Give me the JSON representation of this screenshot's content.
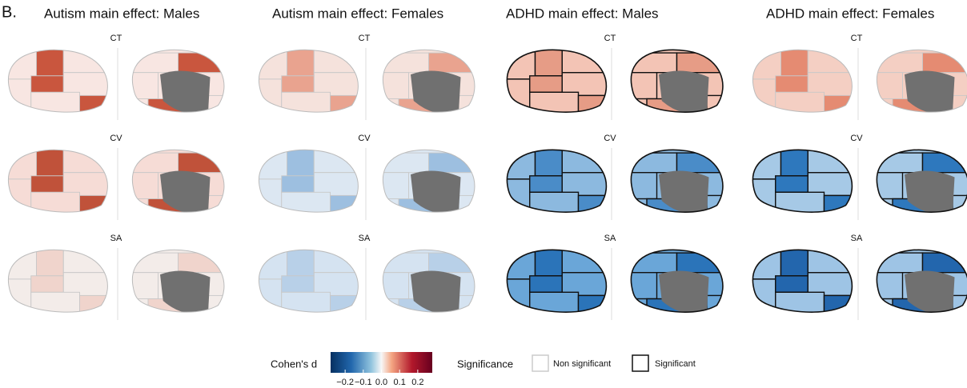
{
  "panel_label": "B.",
  "columns": [
    {
      "title": "Autism main effect: Males",
      "rows": [
        "CT",
        "CV",
        "SA"
      ]
    },
    {
      "title": "Autism main effect: Females",
      "rows": [
        "CT",
        "CV",
        "SA"
      ]
    },
    {
      "title": "ADHD main effect: Males",
      "rows": [
        "CT",
        "CV",
        "SA"
      ]
    },
    {
      "title": "ADHD main effect: Females",
      "rows": [
        "CT",
        "CV",
        "SA"
      ]
    }
  ],
  "legend": {
    "colorbar": {
      "title": "Cohen's d",
      "lim": [
        -0.28,
        0.28
      ],
      "ticks": [
        {
          "value": -0.2,
          "label": "−0.2"
        },
        {
          "value": -0.1,
          "label": "−0.1"
        },
        {
          "value": 0,
          "label": "0.0"
        },
        {
          "value": 0.1,
          "label": "0.1"
        },
        {
          "value": 0.2,
          "label": "0.2"
        }
      ]
    },
    "significance": {
      "title": "Significance",
      "items": [
        "Non significant",
        "Significant"
      ]
    }
  }
}
